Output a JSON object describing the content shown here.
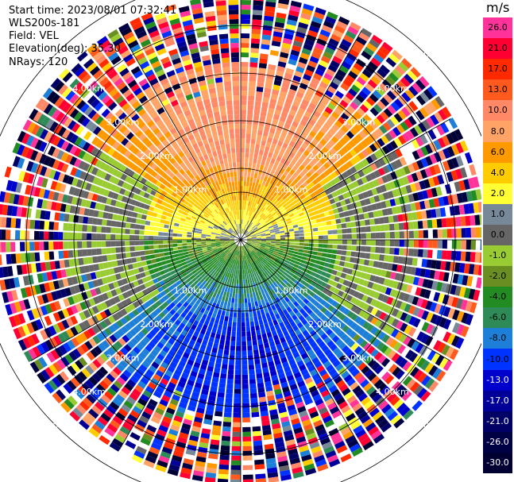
{
  "header": {
    "start_time": "Start time: 2023/08/01 07:32:41",
    "instrument": "WLS200s-181",
    "field": "Field: VEL",
    "elevation": "Elevation(deg): 35.30",
    "nrays": "NRays: 120"
  },
  "colorbar": {
    "unit": "m/s",
    "levels": [
      {
        "label": "26.0",
        "color": "#ff3399"
      },
      {
        "label": "21.0",
        "color": "#ff0033"
      },
      {
        "label": "17.0",
        "color": "#ff2a00"
      },
      {
        "label": "13.0",
        "color": "#ff5a1e"
      },
      {
        "label": "10.0",
        "color": "#ff8866"
      },
      {
        "label": "8.0",
        "color": "#ffa366"
      },
      {
        "label": "6.0",
        "color": "#ff9900"
      },
      {
        "label": "4.0",
        "color": "#ffcc00"
      },
      {
        "label": "2.0",
        "color": "#ffff33"
      },
      {
        "label": "1.0",
        "color": "#778899"
      },
      {
        "label": "0.0",
        "color": "#666666"
      },
      {
        "label": "-1.0",
        "color": "#99cc33"
      },
      {
        "label": "-2.0",
        "color": "#6b8e23"
      },
      {
        "label": "-4.0",
        "color": "#228b22"
      },
      {
        "label": "-6.0",
        "color": "#2e8b57"
      },
      {
        "label": "-8.0",
        "color": "#1e7fd8"
      },
      {
        "label": "-10.0",
        "color": "#0033ff"
      },
      {
        "label": "-13.0",
        "color": "#0000cc"
      },
      {
        "label": "-17.0",
        "color": "#000099"
      },
      {
        "label": "-21.0",
        "color": "#000066"
      },
      {
        "label": "-26.0",
        "color": "#000044"
      },
      {
        "label": "-30.0",
        "color": "#000033"
      }
    ]
  },
  "range_rings": [
    {
      "label": "1.00km",
      "range_km": 1
    },
    {
      "label": "2.00km",
      "range_km": 2
    },
    {
      "label": "3.00km",
      "range_km": 3
    },
    {
      "label": "4.00km",
      "range_km": 4
    },
    {
      "label": "5.00km",
      "range_km": 5
    }
  ]
}
